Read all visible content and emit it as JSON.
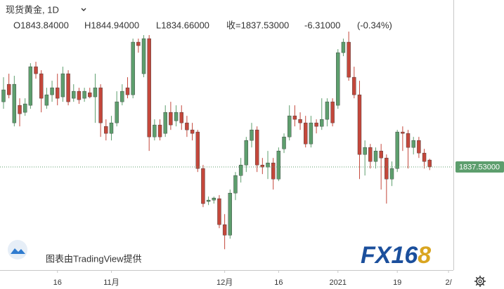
{
  "chart_data": {
    "type": "candlestick",
    "header": {
      "symbol": "现货黄金, 1D",
      "open": "O1843.84000",
      "high": "H1844.94000",
      "low": "L1834.66000",
      "close": "收=1837.53000",
      "change": "-6.31000",
      "change_pct": "(-0.34%)"
    },
    "last_price_label": "1837.53000",
    "attribution": "图表由TradingView提供",
    "logo": {
      "prefix": "FX16",
      "suffix": "8"
    },
    "up_color": "#5d9e6d",
    "down_color": "#c4473b",
    "open": [
      1896.9,
      1912.9,
      1877.7,
      1893.7,
      1887.3,
      1893.7,
      1928.9,
      1922.5,
      1893.7,
      1903.3,
      1909.7,
      1901.4,
      1922.5,
      1900.1,
      1906.5,
      1900.1,
      1905.2,
      1901.4,
      1909.7,
      1874.5,
      1868.1,
      1877.7,
      1896.9,
      1909.7,
      1903.3,
      1951.3,
      1922.5,
      1954.5,
      1864.9,
      1875.8,
      1868.1,
      1887.3,
      1879.6,
      1887.3,
      1877.7,
      1871.3,
      1869.4,
      1836.1,
      1806.0,
      1807.3,
      1808.6,
      1784.9,
      1775.3,
      1813.7,
      1829.7,
      1839.3,
      1861.7,
      1871.3,
      1839.3,
      1837.4,
      1841.2,
      1826.5,
      1854.0,
      1864.9,
      1884.1,
      1880.9,
      1877.7,
      1858.5,
      1877.7,
      1874.5,
      1880.9,
      1896.9,
      1893.7,
      1941.7,
      1951.3,
      1919.3,
      1903.3,
      1848.9,
      1855.3,
      1842.5,
      1852.1,
      1845.7,
      1826.5,
      1836.1,
      1869.4,
      1868.1,
      1855.3,
      1861.7,
      1850.2,
      1843.84
    ],
    "high": [
      1919.3,
      1922.5,
      1920.6,
      1900.1,
      1900.1,
      1932.1,
      1933.4,
      1925.7,
      1909.7,
      1916.1,
      1922.5,
      1928.9,
      1925.7,
      1912.9,
      1909.7,
      1909.7,
      1909.7,
      1922.5,
      1912.9,
      1880.9,
      1884.1,
      1906.5,
      1912.9,
      1919.3,
      1954.5,
      1954.5,
      1957.7,
      1957.7,
      1880.9,
      1880.9,
      1893.7,
      1896.9,
      1893.7,
      1893.7,
      1884.1,
      1877.7,
      1871.3,
      1839.3,
      1810.5,
      1810.5,
      1811.8,
      1794.5,
      1816.9,
      1832.9,
      1845.7,
      1864.9,
      1877.7,
      1874.5,
      1845.7,
      1852.1,
      1845.7,
      1855.3,
      1868.1,
      1893.7,
      1893.7,
      1887.3,
      1884.1,
      1884.1,
      1880.9,
      1900.1,
      1900.1,
      1900.1,
      1944.9,
      1954.5,
      1960.9,
      1928.9,
      1916.1,
      1861.7,
      1858.5,
      1855.3,
      1858.5,
      1848.9,
      1842.5,
      1871.3,
      1874.5,
      1871.3,
      1864.9,
      1864.9,
      1854.0,
      1844.94
    ],
    "low": [
      1890.5,
      1900.1,
      1874.5,
      1874.5,
      1884.1,
      1890.5,
      1918.0,
      1887.3,
      1890.5,
      1896.9,
      1893.7,
      1896.9,
      1893.7,
      1896.9,
      1895.0,
      1896.9,
      1900.1,
      1877.7,
      1864.9,
      1861.7,
      1861.7,
      1874.5,
      1893.7,
      1900.1,
      1900.1,
      1941.7,
      1919.3,
      1852.1,
      1861.7,
      1861.7,
      1864.9,
      1871.3,
      1874.5,
      1871.3,
      1864.9,
      1861.7,
      1832.9,
      1800.9,
      1802.8,
      1804.1,
      1781.7,
      1762.5,
      1772.1,
      1807.3,
      1823.3,
      1832.9,
      1855.3,
      1832.9,
      1831.0,
      1826.5,
      1816.9,
      1824.6,
      1850.2,
      1861.7,
      1874.5,
      1871.3,
      1855.3,
      1855.3,
      1868.1,
      1871.3,
      1874.5,
      1874.5,
      1890.5,
      1938.5,
      1916.1,
      1900.1,
      1826.5,
      1829.7,
      1836.1,
      1836.1,
      1816.9,
      1804.1,
      1820.1,
      1832.9,
      1852.1,
      1836.1,
      1848.9,
      1845.7,
      1836.1,
      1834.66
    ],
    "close": [
      1907.8,
      1903.3,
      1912.9,
      1886.0,
      1895.0,
      1928.9,
      1922.5,
      1900.1,
      1903.3,
      1909.7,
      1900.1,
      1922.5,
      1896.9,
      1906.5,
      1898.8,
      1906.5,
      1901.4,
      1909.7,
      1877.7,
      1868.1,
      1877.7,
      1896.9,
      1906.5,
      1903.3,
      1951.3,
      1948.1,
      1954.5,
      1864.9,
      1875.8,
      1864.9,
      1887.3,
      1875.8,
      1887.3,
      1877.7,
      1871.3,
      1868.1,
      1836.1,
      1804.1,
      1807.3,
      1809.2,
      1784.9,
      1775.3,
      1813.7,
      1829.7,
      1839.3,
      1861.7,
      1871.3,
      1839.3,
      1837.4,
      1841.2,
      1826.5,
      1852.1,
      1864.9,
      1884.1,
      1880.9,
      1877.7,
      1858.5,
      1877.7,
      1874.5,
      1880.9,
      1896.9,
      1877.7,
      1941.7,
      1951.3,
      1919.3,
      1903.3,
      1848.9,
      1855.3,
      1842.5,
      1852.1,
      1845.7,
      1826.5,
      1836.1,
      1869.4,
      1868.1,
      1855.3,
      1861.7,
      1850.2,
      1842.5,
      1837.53
    ],
    "xlim": [
      -0.65,
      83.4
    ],
    "xticks": [
      {
        "value": 10,
        "label": "16"
      },
      {
        "value": 20,
        "label": "11月"
      },
      {
        "value": 41,
        "label": "12月"
      },
      {
        "value": 51,
        "label": "16"
      },
      {
        "value": 62,
        "label": "2021"
      },
      {
        "value": 73,
        "label": "19"
      },
      {
        "value": 82.5,
        "label": "2/"
      }
    ],
    "ylim": [
      1743.5,
      1989.7
    ]
  }
}
